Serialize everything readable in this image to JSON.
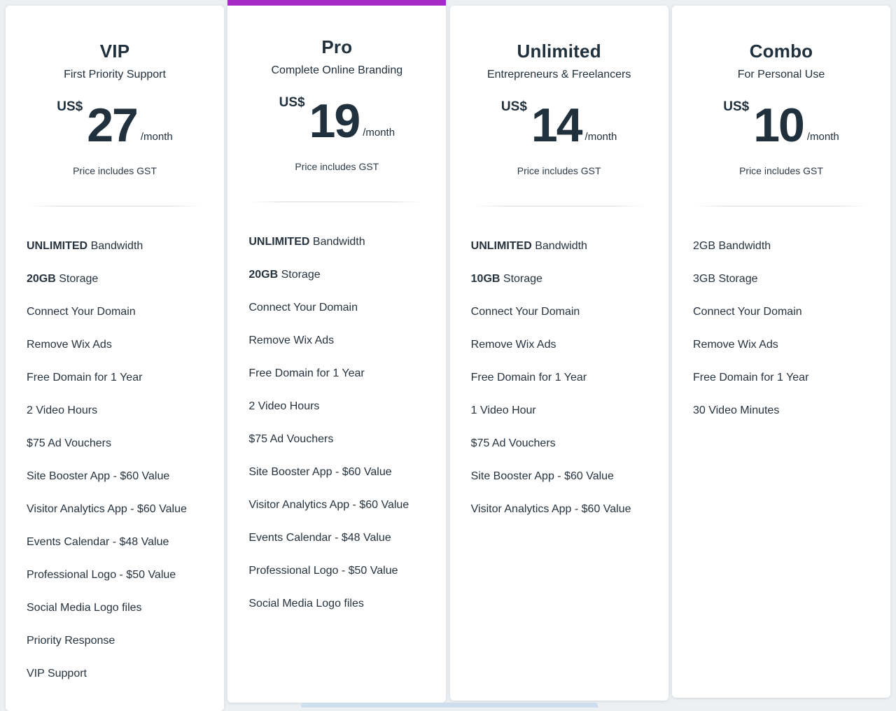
{
  "page": {
    "background": "#edf0f3",
    "accent_purple": "#a62bc6",
    "text_color": "#20303c",
    "partial_bottom_bar_color": "#cfdeee"
  },
  "pricing": {
    "currency_label": "US$",
    "period_label": "/month",
    "gst_note": "Price includes GST",
    "plans": [
      {
        "name": "VIP",
        "tagline": "First Priority Support",
        "price": "27",
        "highlighted": false,
        "features": [
          {
            "bold": "UNLIMITED",
            "text": " Bandwidth"
          },
          {
            "bold": "20GB",
            "text": " Storage"
          },
          {
            "bold": "",
            "text": "Connect Your Domain"
          },
          {
            "bold": "",
            "text": "Remove Wix Ads"
          },
          {
            "bold": "",
            "text": "Free Domain for 1 Year"
          },
          {
            "bold": "",
            "text": "2 Video Hours"
          },
          {
            "bold": "",
            "text": "$75 Ad Vouchers"
          },
          {
            "bold": "",
            "text": "Site Booster App - $60 Value"
          },
          {
            "bold": "",
            "text": "Visitor Analytics App - $60 Value"
          },
          {
            "bold": "",
            "text": "Events Calendar - $48 Value"
          },
          {
            "bold": "",
            "text": "Professional Logo - $50 Value"
          },
          {
            "bold": "",
            "text": "Social Media Logo files"
          },
          {
            "bold": "",
            "text": "Priority Response"
          },
          {
            "bold": "",
            "text": "VIP Support"
          }
        ]
      },
      {
        "name": "Pro",
        "tagline": "Complete Online Branding",
        "price": "19",
        "highlighted": true,
        "features": [
          {
            "bold": "UNLIMITED",
            "text": " Bandwidth"
          },
          {
            "bold": "20GB",
            "text": " Storage"
          },
          {
            "bold": "",
            "text": "Connect Your Domain"
          },
          {
            "bold": "",
            "text": "Remove Wix Ads"
          },
          {
            "bold": "",
            "text": "Free Domain for 1 Year"
          },
          {
            "bold": "",
            "text": "2 Video Hours"
          },
          {
            "bold": "",
            "text": "$75 Ad Vouchers"
          },
          {
            "bold": "",
            "text": "Site Booster App - $60 Value"
          },
          {
            "bold": "",
            "text": "Visitor Analytics App - $60 Value"
          },
          {
            "bold": "",
            "text": "Events Calendar - $48 Value"
          },
          {
            "bold": "",
            "text": "Professional Logo - $50 Value"
          },
          {
            "bold": "",
            "text": "Social Media Logo files"
          }
        ]
      },
      {
        "name": "Unlimited",
        "tagline": "Entrepreneurs & Freelancers",
        "price": "14",
        "highlighted": false,
        "features": [
          {
            "bold": "UNLIMITED",
            "text": " Bandwidth"
          },
          {
            "bold": "10GB",
            "text": " Storage"
          },
          {
            "bold": "",
            "text": "Connect Your Domain"
          },
          {
            "bold": "",
            "text": "Remove Wix Ads"
          },
          {
            "bold": "",
            "text": "Free Domain for 1 Year"
          },
          {
            "bold": "",
            "text": "1 Video Hour"
          },
          {
            "bold": "",
            "text": "$75 Ad Vouchers"
          },
          {
            "bold": "",
            "text": "Site Booster App - $60 Value"
          },
          {
            "bold": "",
            "text": "Visitor Analytics App - $60 Value"
          }
        ]
      },
      {
        "name": "Combo",
        "tagline": "For Personal Use",
        "price": "10",
        "highlighted": false,
        "features": [
          {
            "bold": "",
            "text": "2GB Bandwidth"
          },
          {
            "bold": "",
            "text": "3GB Storage"
          },
          {
            "bold": "",
            "text": "Connect Your Domain"
          },
          {
            "bold": "",
            "text": "Remove Wix Ads"
          },
          {
            "bold": "",
            "text": "Free Domain for 1 Year"
          },
          {
            "bold": "",
            "text": "30 Video Minutes"
          }
        ]
      }
    ]
  }
}
